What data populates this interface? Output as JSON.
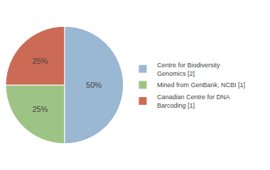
{
  "chart_data": {
    "type": "pie",
    "categories": [
      "Centre for Biodiversity\nGenomics [2]",
      "Mined from GenBank, NCBI [1]",
      "Canadian Centre for DNA\nBarcoding [1]"
    ],
    "values": [
      50,
      25,
      25
    ],
    "value_labels": [
      "50%",
      "25%",
      "25%"
    ],
    "colors": [
      "#9ab7d3",
      "#9dc484",
      "#cc6b55"
    ],
    "data_labels": true,
    "legend": "right"
  }
}
